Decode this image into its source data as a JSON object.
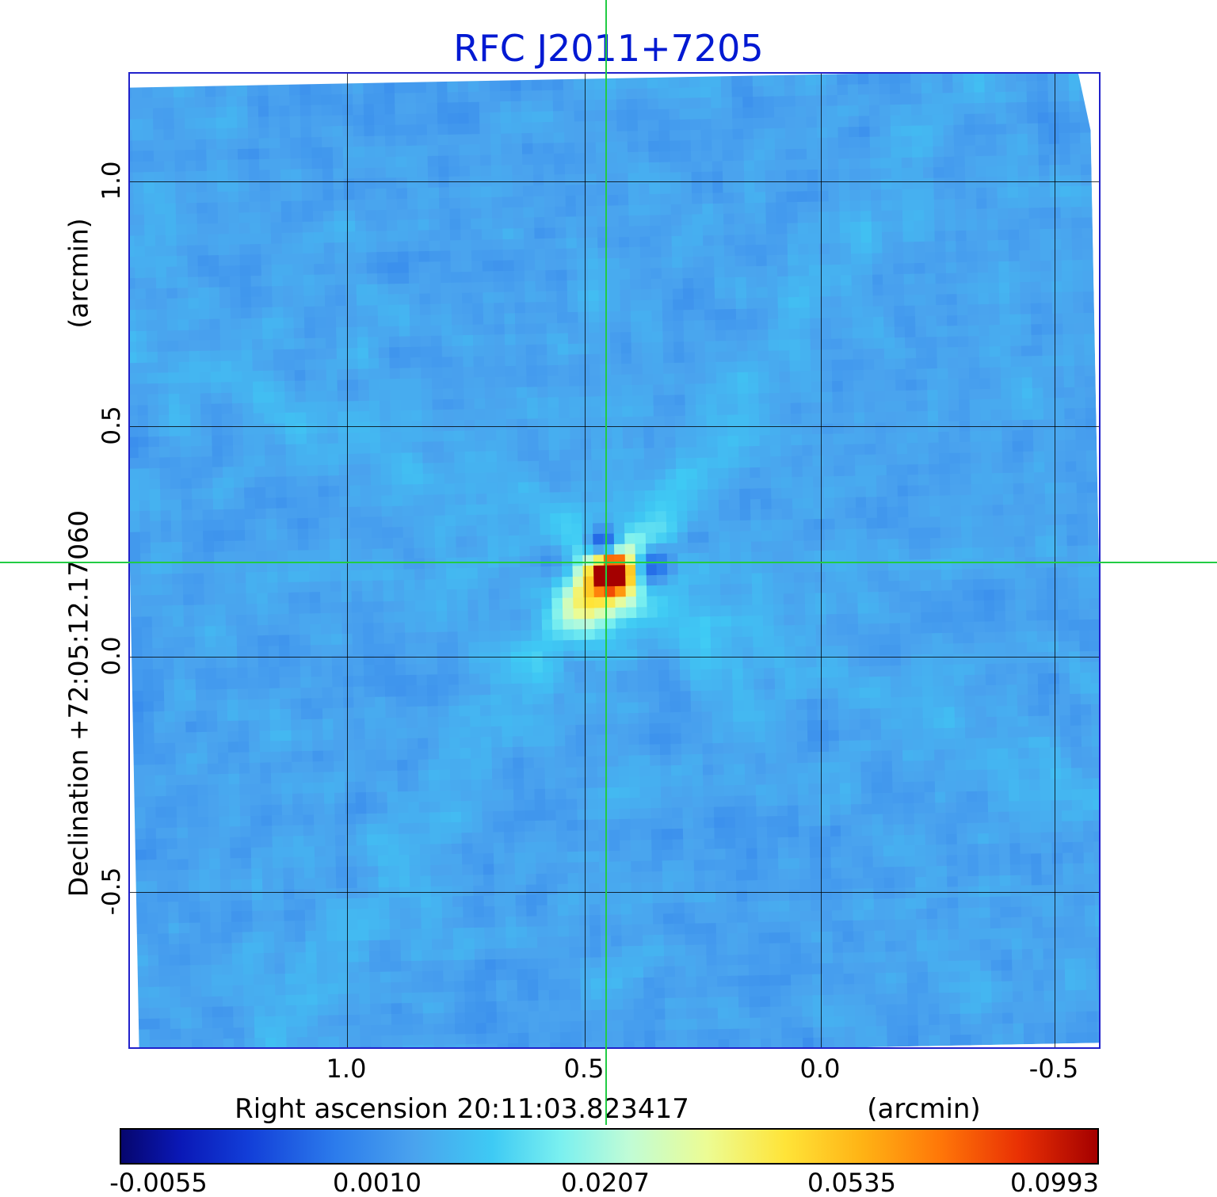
{
  "title": "RFC J2011+7205",
  "y_axis": {
    "label": "Declination  +72:05:12.17060",
    "unit": "(arcmin)",
    "ticks": [
      "1.0",
      "0.5",
      "0.0",
      "-0.5"
    ]
  },
  "x_axis": {
    "label": "Right ascension  20:11:03.823417",
    "unit": "(arcmin)",
    "ticks": [
      "1.0",
      "0.5",
      "0.0",
      "-0.5"
    ]
  },
  "colorbar": {
    "ticks": [
      "-0.0055",
      "0.0010",
      "0.0207",
      "0.0535",
      "0.0993"
    ]
  },
  "colors": {
    "title": "#0019d2",
    "box_border": "#2121cb",
    "grid": "#000000",
    "crosshair": "#22cc44",
    "colorbar_border": "#000000"
  },
  "chart_data": {
    "type": "heatmap",
    "title": "RFC J2011+7205",
    "xlabel": "Right ascension 20:11:03.823417 (arcmin)",
    "ylabel": "Declination +72:05:12.17060 (arcmin)",
    "x_ticks_arcmin": [
      1.0,
      0.5,
      0.0,
      -0.5
    ],
    "y_ticks_arcmin": [
      1.0,
      0.5,
      0.0,
      -0.5
    ],
    "x_range_arcmin": [
      1.46,
      -0.59
    ],
    "y_range_arcmin": [
      1.23,
      -0.84
    ],
    "grid": true,
    "legend": "horizontal-colorbar-bottom",
    "intensity_scale_ticks": [
      -0.0055,
      0.001,
      0.0207,
      0.0535,
      0.0993
    ],
    "peak_intensity": 0.0993,
    "background_level": 0.001,
    "source": {
      "ra": "20:11:03.823417",
      "dec": "+72:05:12.17060",
      "offset_x_arcmin": 0.45,
      "offset_y_arcmin": 0.2,
      "marker": "green-crosshair"
    },
    "palette": "jet-like rainbow",
    "render": {
      "grid_cells": 92,
      "center_frac": {
        "x": 0.492,
        "y": 0.503
      },
      "background_t": 0.3,
      "noise": {
        "seed": 20117205,
        "amplitude": 0.14
      },
      "colormap": [
        [
          0.0,
          [
            6,
            6,
            110
          ]
        ],
        [
          0.06,
          [
            10,
            24,
            182
          ]
        ],
        [
          0.13,
          [
            18,
            62,
            216
          ]
        ],
        [
          0.22,
          [
            44,
            124,
            236
          ]
        ],
        [
          0.3,
          [
            74,
            163,
            238
          ]
        ],
        [
          0.38,
          [
            62,
            202,
            244
          ]
        ],
        [
          0.45,
          [
            122,
            240,
            240
          ]
        ],
        [
          0.52,
          [
            192,
            252,
            214
          ]
        ],
        [
          0.6,
          [
            236,
            252,
            148
          ]
        ],
        [
          0.68,
          [
            255,
            228,
            56
          ]
        ],
        [
          0.76,
          [
            255,
            178,
            20
          ]
        ],
        [
          0.84,
          [
            255,
            118,
            8
          ]
        ],
        [
          0.92,
          [
            233,
            48,
            4
          ]
        ],
        [
          1.0,
          [
            164,
            0,
            0
          ]
        ]
      ],
      "rays": [
        {
          "angle_deg": 27,
          "amp": 0.045,
          "sigma": 2.0,
          "decay": 90
        },
        {
          "angle_deg": -53,
          "amp": 0.04,
          "sigma": 2.0,
          "decay": 90
        },
        {
          "angle_deg": 45,
          "amp": 0.09,
          "sigma": 1.6,
          "decay": 14
        },
        {
          "angle_deg": -45,
          "amp": 0.09,
          "sigma": 1.6,
          "decay": 14
        },
        {
          "angle_deg": 0,
          "amp": 0.035,
          "sigma": 1.4,
          "decay": 26
        },
        {
          "angle_deg": 90,
          "amp": 0.035,
          "sigma": 1.4,
          "decay": 26
        }
      ],
      "components": [
        {
          "dx": 0.0,
          "dy": 0.0,
          "sigma": 0.9,
          "amp": 0.62
        },
        {
          "dx": 0.0,
          "dy": 0.0,
          "sigma": 1.9,
          "amp": 0.26
        },
        {
          "dx": -2.8,
          "dy": 2.8,
          "sigma": 2.0,
          "amp": 0.2
        },
        {
          "dx": 2.2,
          "dy": -2.0,
          "sigma": 1.8,
          "amp": 0.1
        },
        {
          "dx": -0.6,
          "dy": -2.6,
          "sigma": 1.2,
          "amp": -0.34
        },
        {
          "dx": 3.4,
          "dy": -0.6,
          "sigma": 1.4,
          "amp": -0.32
        },
        {
          "dx": -4.6,
          "dy": -1.0,
          "sigma": 1.5,
          "amp": -0.1
        }
      ]
    }
  }
}
